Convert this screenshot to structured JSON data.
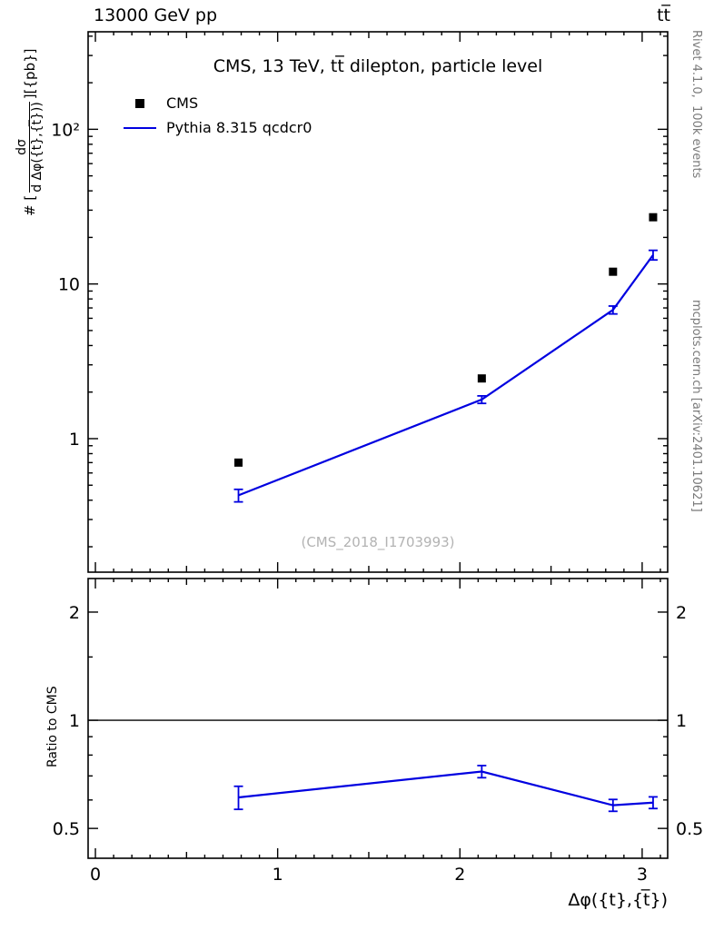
{
  "header": {
    "left": "13000 GeV pp",
    "right": "tt̅"
  },
  "side_texts": {
    "top": "Rivet 4.1.0,  100k events",
    "bottom": "mcplots.cern.ch [arXiv:2401.10621]"
  },
  "watermark": "(CMS_2018_I1703993)",
  "legend": {
    "items": [
      {
        "label": "CMS",
        "marker": "filled-square",
        "color": "#000000"
      },
      {
        "label": "Pythia 8.315 qcdcr0",
        "marker": "line",
        "color": "#0000e0"
      }
    ]
  },
  "ylabel": {
    "prefix": "# [",
    "num": "dσ",
    "den": "d Δφ({t},{t̅}))",
    "suffix": "][{pb}]"
  },
  "chart_data": {
    "type": "line+scatter with ratio panel",
    "title": "CMS, 13 TeV, tt̅ dilepton, particle level",
    "xlabel": "Δφ({t},{t̅})",
    "ylabel": "# [dσ/(d Δφ({t},{t̅}))] [{pb}]",
    "ratio_ylabel": "Ratio to CMS",
    "x": [
      0.785,
      2.12,
      2.84,
      3.06
    ],
    "series": [
      {
        "name": "CMS",
        "type": "scatter",
        "marker": "square",
        "color": "#000000",
        "values": [
          0.7,
          2.45,
          12,
          27
        ]
      },
      {
        "name": "Pythia 8.315 qcdcr0",
        "type": "line",
        "color": "#0000e0",
        "values": [
          0.43,
          1.79,
          6.8,
          15.4
        ],
        "yerr": [
          0.04,
          0.1,
          0.4,
          1.1
        ]
      }
    ],
    "ratio": {
      "name": "Pythia 8.315 qcdcr0 / CMS",
      "color": "#0000e0",
      "values": [
        0.61,
        0.72,
        0.58,
        0.59
      ],
      "yerr": [
        0.045,
        0.028,
        0.022,
        0.022
      ]
    },
    "axes": {
      "xlim": [
        -0.04,
        3.14
      ],
      "xticks": [
        {
          "v": 0,
          "label": "0"
        },
        {
          "v": 1,
          "label": "1"
        },
        {
          "v": 2,
          "label": "2"
        },
        {
          "v": 3,
          "label": "3"
        }
      ],
      "main": {
        "scale": "log",
        "ylim": [
          0.137,
          427
        ],
        "yticks": [
          {
            "v": 1,
            "label": "1"
          },
          {
            "v": 10,
            "label": "10"
          },
          {
            "v": 100,
            "label": "10²"
          }
        ]
      },
      "ratio": {
        "scale": "log",
        "ylim": [
          0.413,
          2.48
        ],
        "yticks": [
          {
            "v": 0.5,
            "label": "0.5"
          },
          {
            "v": 1,
            "label": "1"
          },
          {
            "v": 2,
            "label": "2"
          }
        ],
        "minor_ticks": [
          0.6,
          0.7,
          0.8,
          0.9,
          1.5
        ],
        "refline": 1
      }
    }
  }
}
